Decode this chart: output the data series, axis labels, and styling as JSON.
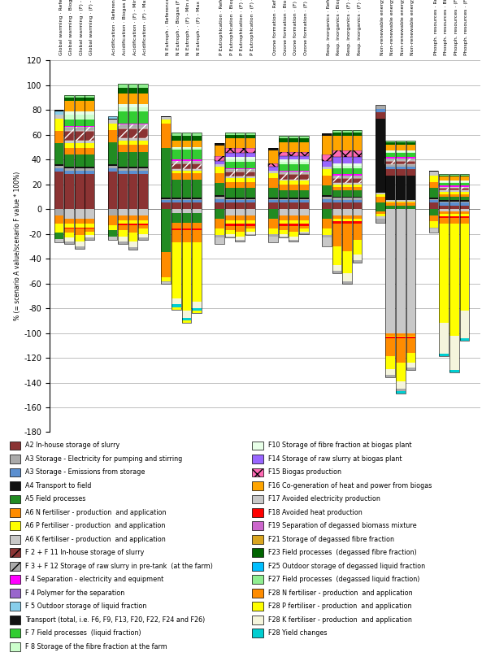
{
  "ylim": [
    -180,
    120
  ],
  "bar_width": 0.6,
  "comp_colors": {
    "A2": "#8B3333",
    "A3_elec": "#AAAAAA",
    "A3_emis": "#5B8FD0",
    "A4": "#111111",
    "A5": "#228B22",
    "A6N": "#FF8C00",
    "A6P": "#FFFF00",
    "A6K": "#C8C8C8",
    "F2F11": "#8B3333",
    "F3F12": "#AAAAAA",
    "F4_sep": "#FF00FF",
    "F4_poly": "#9966CC",
    "F5": "#87CEEB",
    "Transport": "#111111",
    "F7": "#32CD32",
    "F8": "#CCFFCC",
    "F10": "#E8FFE8",
    "F14": "#9966FF",
    "F15": "#FF69B4",
    "F16": "#FFA500",
    "F17": "#C8C8C8",
    "F18": "#FF0000",
    "F19": "#CC66CC",
    "F21": "#DAA520",
    "F23": "#006400",
    "F25": "#00BFFF",
    "F27": "#90EE90",
    "F28N": "#FF8C00",
    "F28P": "#FFFF00",
    "F28K": "#F5F5DC",
    "F28Y": "#00CED1"
  },
  "x_labels": [
    "Global warming · Reference (A)",
    "Global warming · Biogas (F)",
    "Global warming · (F) - Min avoided N",
    "Global warming · (F) - Max avoided N",
    "Acidification · Reference (A)",
    "Acidification · Biogas (F)",
    "Acidification · (F) - Min avoided N",
    "Acidification · (F) - Max avoided N",
    "N Eutroph. · Reference (A)",
    "N Eutroph. · Biogas (F)",
    "N Eutroph. · (F) - Min avoided N",
    "N Eutroph. · (F) - Max avoided N",
    "P Eutrophication · Reference (A)",
    "P Eutrophication · Biogas (F)",
    "P Eutrophication · (F) - Min avoided N",
    "P Eutrophication · (F) - Max avoided N",
    "Ozone formation · Reference (A)",
    "Ozone formation · Biogas (F)",
    "Ozone formation · (F) - Min avoided N",
    "Ozone formation · (F) - Max avoided N",
    "Resp. inorganics · Reference (A)",
    "Resp. inorganics · Biogas (F)",
    "Resp. inorganics · (F) - Min avoided N",
    "Resp. inorganics · (F) - Max avoided N",
    "Non-renewable energy · Reference (A)",
    "Non-renewable energy · Biogas (F)",
    "Non-renewable energy · (F) - Min avoided N",
    "Non-renewable energy · (F) - Max avoided N",
    "Phosph. resources · Reference (A)",
    "Phosph. resources · Biogas (F)",
    "Phosph. resources · (F) - Min avoided N",
    "Phosph. resources · (F) - Max avoided N"
  ],
  "legend_items": [
    {
      "label": "A2 In-house storage of slurry",
      "color": "#8B3333",
      "hatch": ""
    },
    {
      "label": "A3 Storage - Electricity for pumping and stirring",
      "color": "#AAAAAA",
      "hatch": ""
    },
    {
      "label": "A3 Storage - Emissions from storage",
      "color": "#5B8FD0",
      "hatch": ""
    },
    {
      "label": "A4 Transport to field",
      "color": "#111111",
      "hatch": ""
    },
    {
      "label": "A5 Field processes",
      "color": "#228B22",
      "hatch": ""
    },
    {
      "label": "A6 N fertiliser - production  and application",
      "color": "#FF8C00",
      "hatch": ""
    },
    {
      "label": "A6 P fertiliser - production  and application",
      "color": "#FFFF00",
      "hatch": ""
    },
    {
      "label": "A6 K fertiliser - production  and application",
      "color": "#C8C8C8",
      "hatch": ""
    },
    {
      "label": "F 2 + F 11 In-house storage of slurry",
      "color": "#8B3333",
      "hatch": "//"
    },
    {
      "label": "F 3 + F 12 Storage of raw slurry in pre-tank  (at the farm)",
      "color": "#AAAAAA",
      "hatch": "//"
    },
    {
      "label": "F 4 Separation - electricity and equipment",
      "color": "#FF00FF",
      "hatch": ""
    },
    {
      "label": "F 4 Polymer for the separation",
      "color": "#9966CC",
      "hatch": ""
    },
    {
      "label": "F 5 Outdoor storage of liquid fraction",
      "color": "#87CEEB",
      "hatch": ""
    },
    {
      "label": "Transport (total, i.e. F6, F9, F13, F20, F22, F24 and F26)",
      "color": "#111111",
      "hatch": ""
    },
    {
      "label": "F 7 Field processes  (liquid fraction)",
      "color": "#32CD32",
      "hatch": ""
    },
    {
      "label": "F 8 Storage of the fibre fraction at the farm",
      "color": "#CCFFCC",
      "hatch": ""
    },
    {
      "label": "F10 Storage of fibre fraction at biogas plant",
      "color": "#E8FFE8",
      "hatch": ""
    },
    {
      "label": "F14 Storage of raw slurry at biogas plant",
      "color": "#9966FF",
      "hatch": ""
    },
    {
      "label": "F15 Biogas production",
      "color": "#FF69B4",
      "hatch": "xx"
    },
    {
      "label": "F16 Co-generation of heat and power from biogas",
      "color": "#FFA500",
      "hatch": ""
    },
    {
      "label": "F17 Avoided electricity production",
      "color": "#C8C8C8",
      "hatch": ""
    },
    {
      "label": "F18 Avoided heat production",
      "color": "#FF0000",
      "hatch": ""
    },
    {
      "label": "F19 Separation of degassed biomass mixture",
      "color": "#CC66CC",
      "hatch": ""
    },
    {
      "label": "F21 Storage of degassed fibre fraction",
      "color": "#DAA520",
      "hatch": ""
    },
    {
      "label": "F23 Field processes  (degassed fibre fraction)",
      "color": "#006400",
      "hatch": ""
    },
    {
      "label": "F25 Outdoor storage of degassed liquid fraction",
      "color": "#00BFFF",
      "hatch": ""
    },
    {
      "label": "F27 Field processes  (degassed liquid fraction)",
      "color": "#90EE90",
      "hatch": ""
    },
    {
      "label": "F28 N fertiliser - production  and application",
      "color": "#FF8C00",
      "hatch": ""
    },
    {
      "label": "F28 P fertiliser - production  and application",
      "color": "#FFFF00",
      "hatch": ""
    },
    {
      "label": "F28 K fertiliser - production  and application",
      "color": "#F5F5DC",
      "hatch": ""
    },
    {
      "label": "F28 Yield changes",
      "color": "#00CED1",
      "hatch": ""
    }
  ]
}
